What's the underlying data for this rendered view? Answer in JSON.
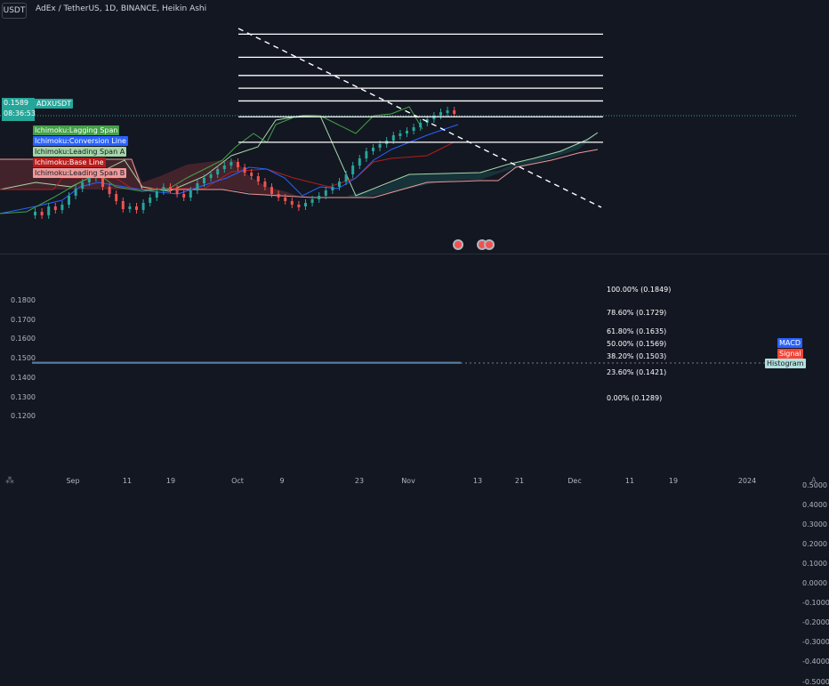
{
  "header": {
    "symbol_button": "USDT",
    "title": "AdEx / TetherUS, 1D, BINANCE, Heikin Ashi"
  },
  "price_axis": {
    "labels": [
      "0.1800",
      "0.1700",
      "0.1600",
      "0.1500",
      "0.1400",
      "0.1300",
      "0.1200"
    ],
    "price_tag": {
      "label": "0.1589",
      "countdown": "08:36:53",
      "symbol": "ADXUSDT"
    }
  },
  "legend": {
    "items": [
      {
        "label": "Ichimoku:Lagging Span",
        "color": "#43a047"
      },
      {
        "label": "Ichimoku:Conversion Line",
        "color": "#2962ff"
      },
      {
        "label": "Ichimoku:Leading Span A",
        "color": "#a5d6a7"
      },
      {
        "label": "Ichimoku:Base Line",
        "color": "#b71c1c"
      },
      {
        "label": "Ichimoku:Leading Span B",
        "color": "#ef9a9a"
      }
    ]
  },
  "fibonacci": {
    "levels": [
      {
        "ratio": "100.00%",
        "price": 0.1849,
        "label": "100.00% (0.1849)"
      },
      {
        "ratio": "78.60%",
        "price": 0.1729,
        "label": "78.60% (0.1729)"
      },
      {
        "ratio": "61.80%",
        "price": 0.1635,
        "label": "61.80% (0.1635)"
      },
      {
        "ratio": "50.00%",
        "price": 0.1569,
        "label": "50.00% (0.1569)"
      },
      {
        "ratio": "38.20%",
        "price": 0.1503,
        "label": "38.20% (0.1503)"
      },
      {
        "ratio": "23.60%",
        "price": 0.1421,
        "label": "23.60% (0.1421)"
      },
      {
        "ratio": "0.00%",
        "price": 0.1289,
        "label": "0.00% (0.1289)"
      }
    ]
  },
  "macd": {
    "axis_labels": [
      "0.5000",
      "0.4000",
      "0.3000",
      "0.2000",
      "0.1000",
      "0.0000",
      "-0.1000",
      "-0.2000",
      "-0.3000",
      "-0.4000",
      "-0.5000"
    ],
    "tags": [
      {
        "label": "MACD",
        "color": "#2962ff"
      },
      {
        "label": "Signal",
        "color": "#f44336"
      },
      {
        "label": "Histogram",
        "color": "#b2dfdb"
      }
    ]
  },
  "time_axis": {
    "labels": [
      "Sep",
      "11",
      "19",
      "Oct",
      "9",
      "23",
      "Nov",
      "13",
      "21",
      "Dec",
      "11",
      "19",
      "2024"
    ]
  },
  "colors": {
    "up": "#26a69a",
    "down": "#ef5350",
    "background": "#131722",
    "fib_line": "#ffffff"
  },
  "icons": {
    "bottom_left": "tradingview-logo-icon",
    "bottom_right": "auto-scale-icon",
    "events": "earnings-event-icon"
  },
  "bottom_right_label": "A"
}
